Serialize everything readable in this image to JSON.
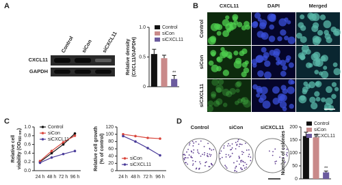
{
  "panels": [
    "A",
    "B",
    "C",
    "D"
  ],
  "blot": {
    "columns": [
      "Control",
      "siCon",
      "siCXCL11"
    ],
    "rows": [
      "CXCL11",
      "GAPDH"
    ]
  },
  "micrographs": {
    "columns": [
      "CXCL11",
      "DAPI",
      "Merged"
    ],
    "rows": [
      "Control",
      "siCon",
      "siCXCL11"
    ]
  },
  "dishes": {
    "labels": [
      "Control",
      "siCon",
      "siCXCL11"
    ]
  },
  "chart_data": [
    {
      "type": "bar",
      "ylabel": [
        "Relative density",
        "(CXCL11/GAPDH)"
      ],
      "categories": [
        "Control",
        "siCon",
        "siCXCL11"
      ],
      "colors": [
        "#111111",
        "#c98a8a",
        "#6b5b9e"
      ],
      "values": [
        0.55,
        0.48,
        0.13
      ],
      "errors": [
        0.08,
        0.05,
        0.06
      ],
      "annotation": "**",
      "ylim": [
        0,
        1
      ],
      "yticks": [
        0,
        {
          "value": 0.5,
          "label": "0.5"
        },
        {
          "value": 1,
          "label": "1.0"
        }
      ]
    },
    {
      "type": "line",
      "ylabel": [
        "Relative cell",
        "viability (OD"
      ],
      "ylabel_sub": "450 nm",
      "ylabel_end": ")",
      "categories": [
        "24 h",
        "48 h",
        "72 h",
        "96 h"
      ],
      "series": [
        {
          "name": "Control",
          "color": "#111111",
          "values": [
            0.2,
            0.4,
            0.6,
            0.85
          ]
        },
        {
          "name": "siCon",
          "color": "#d9443a",
          "values": [
            0.22,
            0.45,
            0.65,
            0.8
          ]
        },
        {
          "name": "siCXCL11",
          "color": "#4b3d9a",
          "values": [
            0.18,
            0.3,
            0.38,
            0.45
          ]
        }
      ],
      "ylim": [
        0,
        1
      ],
      "yticks": [
        {
          "value": 0,
          "label": "0.0"
        },
        0.2,
        0.4,
        0.6,
        0.8,
        {
          "value": 1,
          "label": "1.0"
        }
      ]
    },
    {
      "type": "line",
      "ylabel": [
        "Relative cell growth",
        "(% of control)"
      ],
      "categories": [
        "24 h",
        "48 h",
        "72 h",
        "96 h"
      ],
      "series": [
        {
          "name": "siCon",
          "color": "#d9443a",
          "values": [
            100,
            95,
            90,
            88
          ]
        },
        {
          "name": "siCXCL11",
          "color": "#4b3d9a",
          "values": [
            95,
            80,
            62,
            42
          ]
        }
      ],
      "ylim": [
        0,
        120
      ],
      "yticks": [
        0,
        20,
        40,
        60,
        80,
        100,
        120
      ]
    },
    {
      "type": "bar",
      "ylabel": [
        "Number of colonies"
      ],
      "categories": [
        "Control",
        "siCon",
        "siCXCL11"
      ],
      "colors": [
        "#111111",
        "#c98a8a",
        "#6b5b9e"
      ],
      "values": [
        165,
        160,
        25
      ],
      "errors": [
        15,
        12,
        5
      ],
      "annotation": "**",
      "ylim": [
        0,
        200
      ],
      "yticks": [
        0,
        50,
        100,
        150,
        200
      ]
    }
  ]
}
